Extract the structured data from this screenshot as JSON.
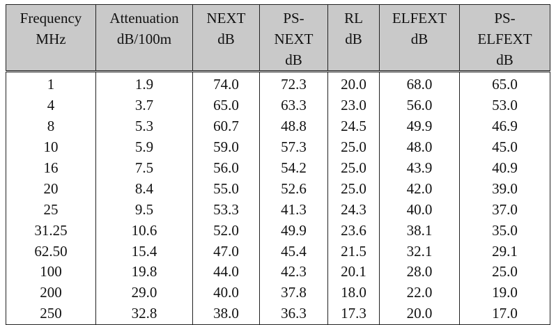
{
  "table": {
    "header": [
      [
        "Frequency",
        "MHz"
      ],
      [
        "Attenuation",
        "dB/100m"
      ],
      [
        "NEXT",
        "dB"
      ],
      [
        "PS-",
        "NEXT",
        "dB"
      ],
      [
        "RL",
        "dB"
      ],
      [
        "ELFEXT",
        "dB"
      ],
      [
        "PS-",
        "ELFEXT",
        "dB"
      ]
    ],
    "rows": [
      [
        "1",
        "1.9",
        "74.0",
        "72.3",
        "20.0",
        "68.0",
        "65.0"
      ],
      [
        "4",
        "3.7",
        "65.0",
        "63.3",
        "23.0",
        "56.0",
        "53.0"
      ],
      [
        "8",
        "5.3",
        "60.7",
        "48.8",
        "24.5",
        "49.9",
        "46.9"
      ],
      [
        "10",
        "5.9",
        "59.0",
        "57.3",
        "25.0",
        "48.0",
        "45.0"
      ],
      [
        "16",
        "7.5",
        "56.0",
        "54.2",
        "25.0",
        "43.9",
        "40.9"
      ],
      [
        "20",
        "8.4",
        "55.0",
        "52.6",
        "25.0",
        "42.0",
        "39.0"
      ],
      [
        "25",
        "9.5",
        "53.3",
        "41.3",
        "24.3",
        "40.0",
        "37.0"
      ],
      [
        "31.25",
        "10.6",
        "52.0",
        "49.9",
        "23.6",
        "38.1",
        "35.0"
      ],
      [
        "62.50",
        "15.4",
        "47.0",
        "45.4",
        "21.5",
        "32.1",
        "29.1"
      ],
      [
        "100",
        "19.8",
        "44.0",
        "42.3",
        "20.1",
        "28.0",
        "25.0"
      ],
      [
        "200",
        "29.0",
        "40.0",
        "37.8",
        "18.0",
        "22.0",
        "19.0"
      ],
      [
        "250",
        "32.8",
        "38.0",
        "36.3",
        "17.3",
        "20.0",
        "17.0"
      ]
    ]
  }
}
